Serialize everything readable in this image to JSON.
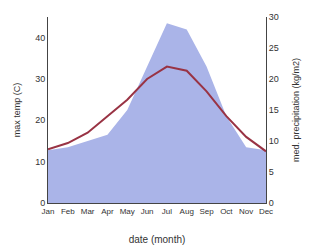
{
  "chart_data": {
    "type": "line",
    "categories": [
      "Jan",
      "Feb",
      "Mar",
      "Apr",
      "May",
      "Jun",
      "Jul",
      "Aug",
      "Sep",
      "Oct",
      "Nov",
      "Dec"
    ],
    "xlabel": "date (month)",
    "ylabel": "max temp (C)",
    "y2label": "med. precipitation (kg/m2)",
    "series": [
      {
        "type": "area",
        "axis": "y2",
        "color": "#aab4e8",
        "values": [
          8.5,
          9.0,
          10.0,
          11.0,
          15.0,
          22.0,
          29.0,
          28.0,
          22.0,
          14.0,
          9.0,
          8.5
        ]
      },
      {
        "type": "line",
        "color": "#993344",
        "values": [
          13.0,
          14.5,
          17.0,
          21.0,
          25.0,
          30.0,
          33.0,
          32.0,
          27.0,
          21.0,
          16.0,
          12.5
        ]
      }
    ],
    "ylim": [
      0,
      45
    ],
    "yticks": [
      0,
      10,
      20,
      30,
      40
    ],
    "y2lim": [
      0,
      30
    ],
    "y2ticks": [
      0,
      5,
      10,
      15,
      20,
      25,
      30
    ],
    "grid": false
  }
}
